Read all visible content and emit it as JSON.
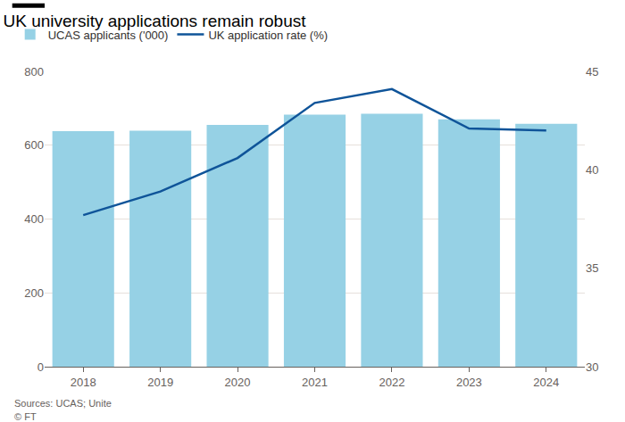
{
  "chart_data": {
    "type": "bar",
    "title": "UK university applications remain robust",
    "categories": [
      "2018",
      "2019",
      "2020",
      "2021",
      "2022",
      "2023",
      "2024"
    ],
    "series": [
      {
        "name": "UCAS applicants ('000)",
        "type": "bar",
        "color": "#96d1e5",
        "values": [
          638,
          639,
          655,
          683,
          685,
          670,
          658
        ]
      },
      {
        "name": "UK application rate (%)",
        "type": "line",
        "axis": "y2",
        "color": "#0f5499",
        "values": [
          37.7,
          38.9,
          40.6,
          43.4,
          44.1,
          42.1,
          42.0
        ]
      }
    ],
    "ylim": [
      0,
      800
    ],
    "yticks": [
      0,
      200,
      400,
      600,
      800
    ],
    "y2lim": [
      30,
      45
    ],
    "y2ticks": [
      30,
      35,
      40,
      45
    ],
    "grid": true,
    "legend": "top",
    "annotations": [
      "Sources: UCAS; Unite",
      "© FT"
    ]
  }
}
